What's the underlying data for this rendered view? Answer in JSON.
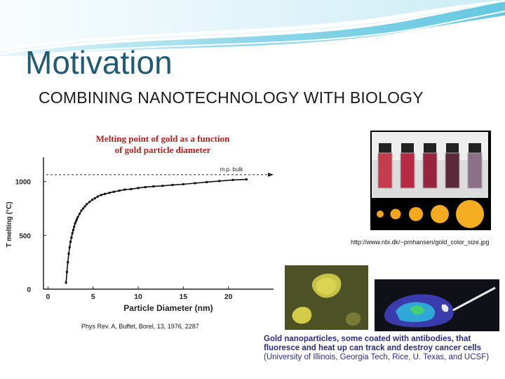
{
  "slide": {
    "title": "Motivation",
    "subtitle": "COMBINING NANOTECHNOLOGY WITH BIOLOGY",
    "citation": "Phys Rev. A, Buffet, Borel, 13, 1976, 2287",
    "url_caption": "http://www.nbi.dk/~pmhansen/gold_color_size.jpg",
    "gold_caption_bold": "Gold nanoparticles, some coated with antibodies, that fluoresce and heat up can track and destroy cancer cells",
    "gold_caption_plain": "(University of Illinois, Georgia Tech, Rice, U. Texas, and UCSF)"
  },
  "chart_data": {
    "type": "scatter",
    "title": "Melting point of gold as a function of gold particle diameter",
    "xlabel": "Particle Diameter (nm)",
    "ylabel": "T melting (°C)",
    "xlim": [
      -0.5,
      25
    ],
    "ylim": [
      0,
      1200
    ],
    "xticks": [
      0,
      5,
      10,
      15,
      20
    ],
    "yticks": [
      0,
      500,
      1000
    ],
    "annotation": "m.p. bulk",
    "bulk_value": 1064,
    "series": [
      {
        "x": [
          2.0,
          2.1,
          2.2,
          2.3,
          2.4,
          2.5,
          2.6,
          2.7,
          2.8,
          2.9,
          3.0,
          3.1,
          3.2,
          3.3,
          3.5,
          3.7,
          3.9,
          4.1,
          4.3,
          4.6,
          4.9,
          5.2,
          5.5,
          5.9,
          6.3,
          6.8,
          7.3,
          7.9,
          8.5,
          9.2,
          10.0,
          10.8,
          11.7,
          12.7,
          13.8,
          15.0,
          16.3,
          17.6,
          19.0,
          20.5,
          22.0
        ],
        "y": [
          60,
          160,
          250,
          330,
          390,
          440,
          480,
          520,
          550,
          580,
          610,
          630,
          650,
          670,
          700,
          730,
          750,
          770,
          790,
          810,
          830,
          845,
          860,
          875,
          885,
          895,
          905,
          915,
          925,
          930,
          940,
          948,
          955,
          960,
          968,
          975,
          985,
          995,
          1005,
          1015,
          1020
        ]
      }
    ]
  },
  "colors": {
    "title": "#1f5c73",
    "swoosh_primary": "#5cc5df",
    "swoosh_light": "#bfe8f3",
    "caption": "#2c2c7a",
    "chart_title": "#b02020"
  }
}
